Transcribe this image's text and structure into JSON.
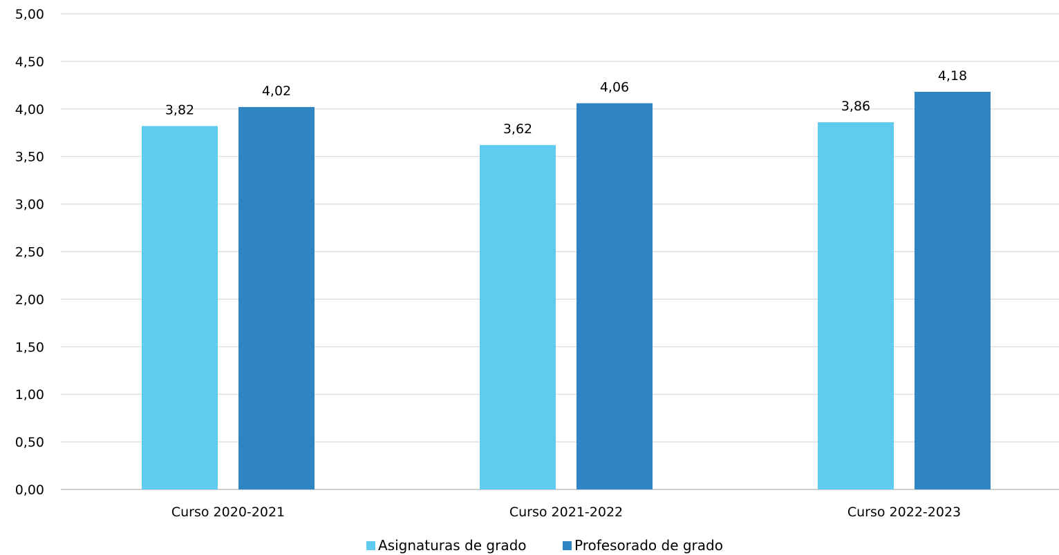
{
  "chart_data": {
    "type": "bar",
    "categories": [
      "Curso 2020-2021",
      "Curso 2021-2022",
      "Curso 2022-2023"
    ],
    "series": [
      {
        "name": "Asignaturas de grado",
        "values": [
          3.82,
          3.62,
          3.86
        ],
        "labels": [
          "3,82",
          "3,62",
          "3,86"
        ],
        "color": "#5ecbef"
      },
      {
        "name": "Profesorado de grado",
        "values": [
          4.02,
          4.06,
          4.18
        ],
        "labels": [
          "4,02",
          "4,06",
          "4,18"
        ],
        "color": "#2f84c4"
      }
    ],
    "yticks": [
      0,
      0.5,
      1,
      1.5,
      2,
      2.5,
      3,
      3.5,
      4,
      4.5,
      5
    ],
    "ytick_labels": [
      "0,00",
      "0,50",
      "1,00",
      "1,50",
      "2,00",
      "2,50",
      "3,00",
      "3,50",
      "4,00",
      "4,50",
      "5,00"
    ],
    "ylim": [
      0,
      5
    ],
    "title": "",
    "xlabel": "",
    "ylabel": "",
    "grid": true,
    "legend_position": "bottom"
  }
}
